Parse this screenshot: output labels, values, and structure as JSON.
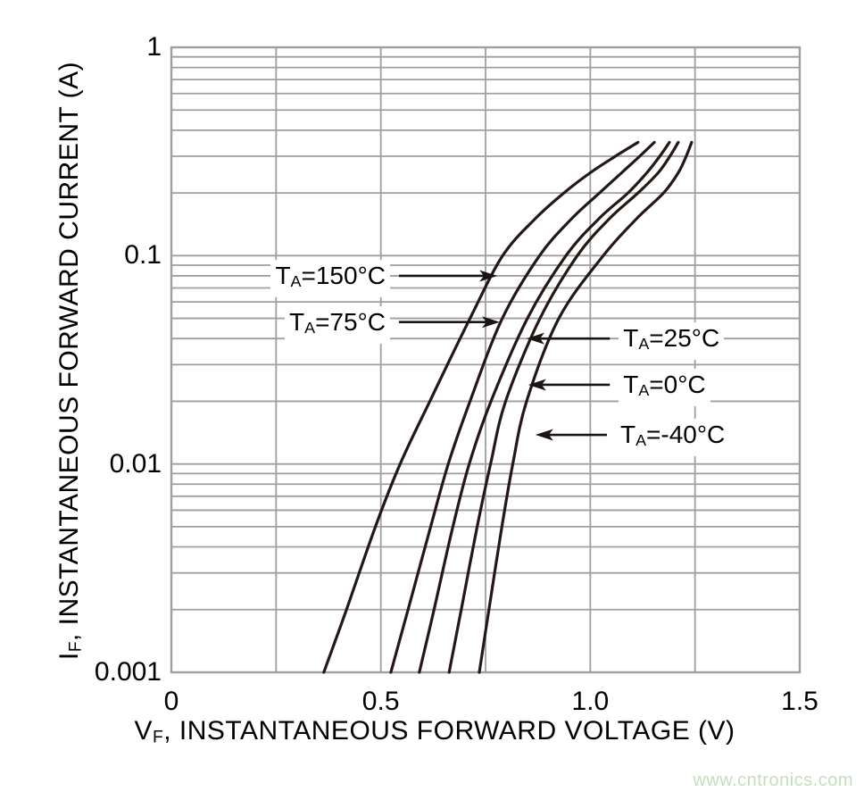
{
  "watermark": {
    "text": "www.cntronics.com"
  },
  "colors": {
    "background": "#ffffff",
    "grid": "#9f9f9f",
    "curve": "#231815",
    "arrow": "#1a1414",
    "text": "#000000",
    "watermark": "#c5dfba"
  },
  "chart_data": {
    "type": "line",
    "title": "",
    "xlabel": {
      "main": "V",
      "sub": "F",
      "rest": ", INSTANTANEOUS FORWARD VOLTAGE (V)"
    },
    "ylabel": {
      "main": "I",
      "sub": "F",
      "rest": ", INSTANTANEOUS FORWARD CURRENT (A)"
    },
    "x_axis": {
      "min": 0,
      "max": 1.5,
      "scale": "linear",
      "minor_grid_step": 0.25,
      "ticks": [
        {
          "v": 0,
          "label": "0"
        },
        {
          "v": 0.5,
          "label": "0.5"
        },
        {
          "v": 1.0,
          "label": "1.0"
        },
        {
          "v": 1.5,
          "label": "1.5"
        }
      ]
    },
    "y_axis": {
      "min": 0.001,
      "max": 1,
      "scale": "log",
      "minor_grid": "nine-per-decade",
      "ticks": [
        {
          "v": 1,
          "label": "1"
        },
        {
          "v": 0.1,
          "label": "0.1"
        },
        {
          "v": 0.01,
          "label": "0.01"
        },
        {
          "v": 0.001,
          "label": "0.001"
        }
      ]
    },
    "grid": true,
    "legend_position": "arrow-annotations-inside-plot",
    "series": [
      {
        "id": "150c",
        "name": "TA=150°C",
        "points": [
          [
            0.364,
            0.001
          ],
          [
            0.418,
            0.002
          ],
          [
            0.487,
            0.005
          ],
          [
            0.546,
            0.01
          ],
          [
            0.617,
            0.02
          ],
          [
            0.713,
            0.05
          ],
          [
            0.791,
            0.1
          ],
          [
            0.868,
            0.15
          ],
          [
            0.937,
            0.2
          ],
          [
            1.0,
            0.25
          ],
          [
            1.06,
            0.3
          ],
          [
            1.114,
            0.35
          ]
        ]
      },
      {
        "id": "75c",
        "name": "TA=75°C",
        "points": [
          [
            0.524,
            0.001
          ],
          [
            0.565,
            0.002
          ],
          [
            0.619,
            0.005
          ],
          [
            0.661,
            0.01
          ],
          [
            0.713,
            0.02
          ],
          [
            0.79,
            0.05
          ],
          [
            0.879,
            0.1
          ],
          [
            0.955,
            0.15
          ],
          [
            1.022,
            0.2
          ],
          [
            1.075,
            0.25
          ],
          [
            1.118,
            0.3
          ],
          [
            1.153,
            0.35
          ]
        ]
      },
      {
        "id": "25c",
        "name": "TA=25°C",
        "points": [
          [
            0.592,
            0.001
          ],
          [
            0.627,
            0.002
          ],
          [
            0.672,
            0.005
          ],
          [
            0.711,
            0.01
          ],
          [
            0.763,
            0.02
          ],
          [
            0.85,
            0.05
          ],
          [
            0.942,
            0.1
          ],
          [
            1.02,
            0.15
          ],
          [
            1.09,
            0.2
          ],
          [
            1.135,
            0.25
          ],
          [
            1.166,
            0.3
          ],
          [
            1.189,
            0.35
          ]
        ]
      },
      {
        "id": "0c",
        "name": "TA=0°C",
        "points": [
          [
            0.663,
            0.001
          ],
          [
            0.692,
            0.002
          ],
          [
            0.73,
            0.005
          ],
          [
            0.762,
            0.01
          ],
          [
            0.798,
            0.02
          ],
          [
            0.88,
            0.05
          ],
          [
            0.969,
            0.1
          ],
          [
            1.045,
            0.15
          ],
          [
            1.114,
            0.2
          ],
          [
            1.162,
            0.25
          ],
          [
            1.19,
            0.3
          ],
          [
            1.21,
            0.35
          ]
        ]
      },
      {
        "id": "minus40c",
        "name": "TA=-40°C",
        "points": [
          [
            0.735,
            0.001
          ],
          [
            0.758,
            0.002
          ],
          [
            0.789,
            0.005
          ],
          [
            0.815,
            0.01
          ],
          [
            0.848,
            0.02
          ],
          [
            0.925,
            0.05
          ],
          [
            1.031,
            0.1
          ],
          [
            1.11,
            0.15
          ],
          [
            1.175,
            0.2
          ],
          [
            1.21,
            0.25
          ],
          [
            1.229,
            0.3
          ],
          [
            1.242,
            0.35
          ]
        ]
      }
    ],
    "annotations": [
      {
        "id": "150c",
        "main": "T",
        "sub": "A",
        "rest": "=150°C",
        "side": "left",
        "i": 0.08,
        "label_v": 0.522,
        "tip_v": 0.778
      },
      {
        "id": "75c",
        "main": "T",
        "sub": "A",
        "rest": "=75°C",
        "side": "left",
        "i": 0.048,
        "label_v": 0.522,
        "tip_v": 0.784
      },
      {
        "id": "25c",
        "main": "T",
        "sub": "A",
        "rest": "=25°C",
        "side": "right",
        "i": 0.04,
        "label_v": 1.068,
        "tip_v": 0.848
      },
      {
        "id": "0c",
        "main": "T",
        "sub": "A",
        "rest": "=0°C",
        "side": "right",
        "i": 0.024,
        "label_v": 1.068,
        "tip_v": 0.852
      },
      {
        "id": "minus40c",
        "main": "T",
        "sub": "A",
        "rest": "=-40°C",
        "side": "right",
        "i": 0.0138,
        "label_v": 1.061,
        "tip_v": 0.869
      }
    ]
  }
}
